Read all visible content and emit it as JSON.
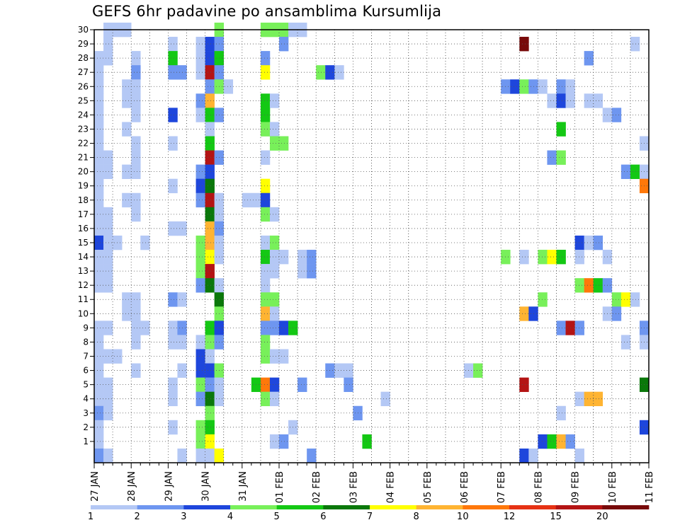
{
  "chart_data": {
    "type": "heatmap",
    "title": "GEFS 6hr padavine po ansamblima Kursumlija",
    "xlabel": "",
    "ylabel": "",
    "y_ticks": [
      "1",
      "2",
      "3",
      "4",
      "5",
      "6",
      "7",
      "8",
      "9",
      "10",
      "11",
      "12",
      "13",
      "14",
      "15",
      "16",
      "17",
      "18",
      "19",
      "20",
      "21",
      "22",
      "23",
      "24",
      "25",
      "26",
      "27",
      "28",
      "29",
      "30"
    ],
    "x_ticks": [
      "27 JAN",
      "28 JAN",
      "29 JAN",
      "30 JAN",
      "31 JAN",
      "01 FEB",
      "02 FEB",
      "03 FEB",
      "04 FEB",
      "05 FEB",
      "06 FEB",
      "07 FEB",
      "08 FEB",
      "09 FEB",
      "10 FEB",
      "11 FEB"
    ],
    "x_range": [
      "27 JAN 00",
      "11 FEB 00"
    ],
    "y_range": [
      0,
      30
    ],
    "grid": true,
    "legend_position": "bottom",
    "colorbar": {
      "labels": [
        "1",
        "2",
        "3",
        "4",
        "5",
        "6",
        "7",
        "8",
        "10",
        "12",
        "15",
        "20"
      ],
      "colors": [
        "#b4c8f5",
        "#6e96f0",
        "#1e46dc",
        "#78f05a",
        "#14c814",
        "#0a780a",
        "#ffff00",
        "#ffb432",
        "#ff780a",
        "#e63214",
        "#b41414",
        "#780a0a"
      ]
    },
    "steps_per_day": 4,
    "cells": [
      {
        "member": 30,
        "steps": [
          [
            1,
            1
          ],
          [
            2,
            1
          ],
          [
            3,
            1
          ],
          [
            13,
            4
          ],
          [
            18,
            4
          ],
          [
            19,
            4
          ],
          [
            20,
            4
          ],
          [
            21,
            1
          ],
          [
            22,
            1
          ]
        ]
      },
      {
        "member": 29,
        "steps": [
          [
            1,
            1
          ],
          [
            8,
            1
          ],
          [
            11,
            1
          ],
          [
            12,
            3
          ],
          [
            13,
            2
          ],
          [
            20,
            2
          ],
          [
            46,
            12
          ],
          [
            58,
            1
          ]
        ]
      },
      {
        "member": 28,
        "steps": [
          [
            0,
            1
          ],
          [
            1,
            1
          ],
          [
            4,
            1
          ],
          [
            8,
            5
          ],
          [
            11,
            1
          ],
          [
            12,
            3
          ],
          [
            13,
            5
          ],
          [
            18,
            2
          ],
          [
            53,
            2
          ]
        ]
      },
      {
        "member": 27,
        "steps": [
          [
            0,
            1
          ],
          [
            4,
            2
          ],
          [
            8,
            2
          ],
          [
            9,
            2
          ],
          [
            11,
            1
          ],
          [
            12,
            11
          ],
          [
            13,
            2
          ],
          [
            18,
            7
          ],
          [
            24,
            4
          ],
          [
            25,
            3
          ],
          [
            26,
            1
          ]
        ]
      },
      {
        "member": 26,
        "steps": [
          [
            0,
            1
          ],
          [
            3,
            1
          ],
          [
            4,
            1
          ],
          [
            12,
            2
          ],
          [
            13,
            4
          ],
          [
            14,
            1
          ],
          [
            44,
            2
          ],
          [
            45,
            3
          ],
          [
            46,
            4
          ],
          [
            47,
            2
          ],
          [
            48,
            1
          ],
          [
            50,
            2
          ],
          [
            51,
            1
          ]
        ]
      },
      {
        "member": 25,
        "steps": [
          [
            0,
            1
          ],
          [
            3,
            1
          ],
          [
            4,
            1
          ],
          [
            11,
            2
          ],
          [
            12,
            8
          ],
          [
            18,
            5
          ],
          [
            19,
            1
          ],
          [
            49,
            1
          ],
          [
            50,
            3
          ],
          [
            51,
            1
          ],
          [
            53,
            1
          ],
          [
            54,
            1
          ]
        ]
      },
      {
        "member": 24,
        "steps": [
          [
            0,
            1
          ],
          [
            4,
            1
          ],
          [
            8,
            3
          ],
          [
            11,
            1
          ],
          [
            12,
            5
          ],
          [
            13,
            2
          ],
          [
            18,
            5
          ],
          [
            55,
            1
          ],
          [
            56,
            2
          ]
        ]
      },
      {
        "member": 23,
        "steps": [
          [
            0,
            1
          ],
          [
            3,
            1
          ],
          [
            12,
            1
          ],
          [
            18,
            4
          ],
          [
            19,
            1
          ],
          [
            50,
            5
          ]
        ]
      },
      {
        "member": 22,
        "steps": [
          [
            0,
            1
          ],
          [
            4,
            1
          ],
          [
            8,
            1
          ],
          [
            12,
            5
          ],
          [
            19,
            4
          ],
          [
            20,
            4
          ],
          [
            59,
            1
          ]
        ]
      },
      {
        "member": 21,
        "steps": [
          [
            0,
            1
          ],
          [
            1,
            1
          ],
          [
            4,
            1
          ],
          [
            12,
            11
          ],
          [
            13,
            2
          ],
          [
            18,
            1
          ],
          [
            49,
            2
          ],
          [
            50,
            4
          ]
        ]
      },
      {
        "member": 20,
        "steps": [
          [
            0,
            1
          ],
          [
            1,
            1
          ],
          [
            3,
            1
          ],
          [
            4,
            1
          ],
          [
            11,
            2
          ],
          [
            12,
            3
          ],
          [
            57,
            2
          ],
          [
            58,
            5
          ],
          [
            59,
            1
          ]
        ]
      },
      {
        "member": 19,
        "steps": [
          [
            0,
            1
          ],
          [
            8,
            1
          ],
          [
            11,
            3
          ],
          [
            12,
            6
          ],
          [
            18,
            7
          ],
          [
            59,
            9
          ]
        ]
      },
      {
        "member": 18,
        "steps": [
          [
            0,
            1
          ],
          [
            3,
            1
          ],
          [
            4,
            1
          ],
          [
            11,
            2
          ],
          [
            12,
            11
          ],
          [
            13,
            1
          ],
          [
            16,
            1
          ],
          [
            17,
            1
          ],
          [
            18,
            3
          ]
        ]
      },
      {
        "member": 17,
        "steps": [
          [
            0,
            1
          ],
          [
            1,
            1
          ],
          [
            4,
            1
          ],
          [
            12,
            6
          ],
          [
            13,
            1
          ],
          [
            18,
            4
          ],
          [
            19,
            1
          ]
        ]
      },
      {
        "member": 16,
        "steps": [
          [
            0,
            1
          ],
          [
            1,
            1
          ],
          [
            8,
            1
          ],
          [
            9,
            1
          ],
          [
            12,
            8
          ],
          [
            13,
            2
          ]
        ]
      },
      {
        "member": 15,
        "steps": [
          [
            0,
            3
          ],
          [
            1,
            1
          ],
          [
            2,
            1
          ],
          [
            5,
            1
          ],
          [
            11,
            4
          ],
          [
            12,
            8
          ],
          [
            13,
            1
          ],
          [
            18,
            1
          ],
          [
            19,
            4
          ],
          [
            52,
            3
          ],
          [
            53,
            1
          ],
          [
            54,
            2
          ]
        ]
      },
      {
        "member": 14,
        "steps": [
          [
            0,
            1
          ],
          [
            1,
            1
          ],
          [
            11,
            4
          ],
          [
            12,
            7
          ],
          [
            13,
            1
          ],
          [
            18,
            5
          ],
          [
            19,
            1
          ],
          [
            20,
            1
          ],
          [
            22,
            1
          ],
          [
            23,
            2
          ],
          [
            44,
            4
          ],
          [
            46,
            1
          ],
          [
            48,
            4
          ],
          [
            49,
            7
          ],
          [
            50,
            5
          ],
          [
            52,
            1
          ],
          [
            55,
            1
          ]
        ]
      },
      {
        "member": 13,
        "steps": [
          [
            0,
            1
          ],
          [
            1,
            1
          ],
          [
            11,
            4
          ],
          [
            12,
            11
          ],
          [
            18,
            1
          ],
          [
            19,
            1
          ],
          [
            22,
            1
          ],
          [
            23,
            2
          ]
        ]
      },
      {
        "member": 12,
        "steps": [
          [
            0,
            1
          ],
          [
            1,
            1
          ],
          [
            11,
            2
          ],
          [
            12,
            6
          ],
          [
            13,
            1
          ],
          [
            18,
            1
          ],
          [
            52,
            4
          ],
          [
            53,
            9
          ],
          [
            54,
            5
          ],
          [
            55,
            2
          ]
        ]
      },
      {
        "member": 11,
        "steps": [
          [
            3,
            1
          ],
          [
            4,
            1
          ],
          [
            8,
            2
          ],
          [
            9,
            1
          ],
          [
            13,
            6
          ],
          [
            18,
            4
          ],
          [
            19,
            4
          ],
          [
            48,
            4
          ],
          [
            56,
            4
          ],
          [
            57,
            7
          ],
          [
            58,
            1
          ]
        ]
      },
      {
        "member": 10,
        "steps": [
          [
            3,
            1
          ],
          [
            4,
            1
          ],
          [
            13,
            4
          ],
          [
            18,
            8
          ],
          [
            19,
            1
          ],
          [
            46,
            8
          ],
          [
            47,
            3
          ],
          [
            55,
            1
          ],
          [
            56,
            2
          ]
        ]
      },
      {
        "member": 9,
        "steps": [
          [
            0,
            1
          ],
          [
            1,
            1
          ],
          [
            4,
            1
          ],
          [
            5,
            1
          ],
          [
            8,
            1
          ],
          [
            9,
            2
          ],
          [
            12,
            5
          ],
          [
            13,
            3
          ],
          [
            18,
            2
          ],
          [
            19,
            2
          ],
          [
            20,
            3
          ],
          [
            21,
            5
          ],
          [
            50,
            2
          ],
          [
            51,
            11
          ],
          [
            52,
            2
          ],
          [
            59,
            2
          ]
        ]
      },
      {
        "member": 8,
        "steps": [
          [
            0,
            1
          ],
          [
            4,
            1
          ],
          [
            8,
            1
          ],
          [
            9,
            1
          ],
          [
            11,
            1
          ],
          [
            12,
            4
          ],
          [
            13,
            2
          ],
          [
            18,
            4
          ],
          [
            57,
            1
          ],
          [
            59,
            1
          ]
        ]
      },
      {
        "member": 7,
        "steps": [
          [
            0,
            1
          ],
          [
            1,
            1
          ],
          [
            2,
            1
          ],
          [
            11,
            3
          ],
          [
            12,
            1
          ],
          [
            18,
            4
          ],
          [
            19,
            1
          ],
          [
            20,
            1
          ]
        ]
      },
      {
        "member": 6,
        "steps": [
          [
            0,
            1
          ],
          [
            4,
            1
          ],
          [
            9,
            1
          ],
          [
            11,
            3
          ],
          [
            12,
            3
          ],
          [
            13,
            4
          ],
          [
            25,
            2
          ],
          [
            26,
            1
          ],
          [
            27,
            1
          ],
          [
            40,
            1
          ],
          [
            41,
            4
          ]
        ]
      },
      {
        "member": 5,
        "steps": [
          [
            0,
            1
          ],
          [
            1,
            1
          ],
          [
            8,
            1
          ],
          [
            11,
            4
          ],
          [
            12,
            2
          ],
          [
            13,
            1
          ],
          [
            17,
            5
          ],
          [
            18,
            9
          ],
          [
            19,
            3
          ],
          [
            22,
            2
          ],
          [
            27,
            2
          ],
          [
            46,
            11
          ],
          [
            59,
            6
          ]
        ]
      },
      {
        "member": 4,
        "steps": [
          [
            0,
            1
          ],
          [
            1,
            1
          ],
          [
            8,
            1
          ],
          [
            11,
            2
          ],
          [
            12,
            6
          ],
          [
            13,
            1
          ],
          [
            18,
            4
          ],
          [
            19,
            1
          ],
          [
            31,
            1
          ],
          [
            52,
            1
          ],
          [
            53,
            8
          ],
          [
            54,
            8
          ]
        ]
      },
      {
        "member": 3,
        "steps": [
          [
            0,
            2
          ],
          [
            1,
            1
          ],
          [
            12,
            4
          ],
          [
            28,
            2
          ],
          [
            50,
            1
          ]
        ]
      },
      {
        "member": 2,
        "steps": [
          [
            0,
            1
          ],
          [
            8,
            1
          ],
          [
            11,
            4
          ],
          [
            12,
            5
          ],
          [
            21,
            1
          ],
          [
            59,
            3
          ]
        ]
      },
      {
        "member": 1,
        "steps": [
          [
            0,
            1
          ],
          [
            11,
            4
          ],
          [
            12,
            7
          ],
          [
            19,
            1
          ],
          [
            20,
            2
          ],
          [
            29,
            5
          ],
          [
            48,
            3
          ],
          [
            49,
            5
          ],
          [
            50,
            8
          ],
          [
            51,
            2
          ]
        ]
      },
      {
        "member": 0,
        "steps": [
          [
            0,
            2
          ],
          [
            1,
            1
          ],
          [
            9,
            1
          ],
          [
            11,
            1
          ],
          [
            12,
            1
          ],
          [
            13,
            7
          ],
          [
            23,
            2
          ],
          [
            46,
            3
          ],
          [
            47,
            1
          ],
          [
            52,
            1
          ]
        ]
      }
    ]
  }
}
